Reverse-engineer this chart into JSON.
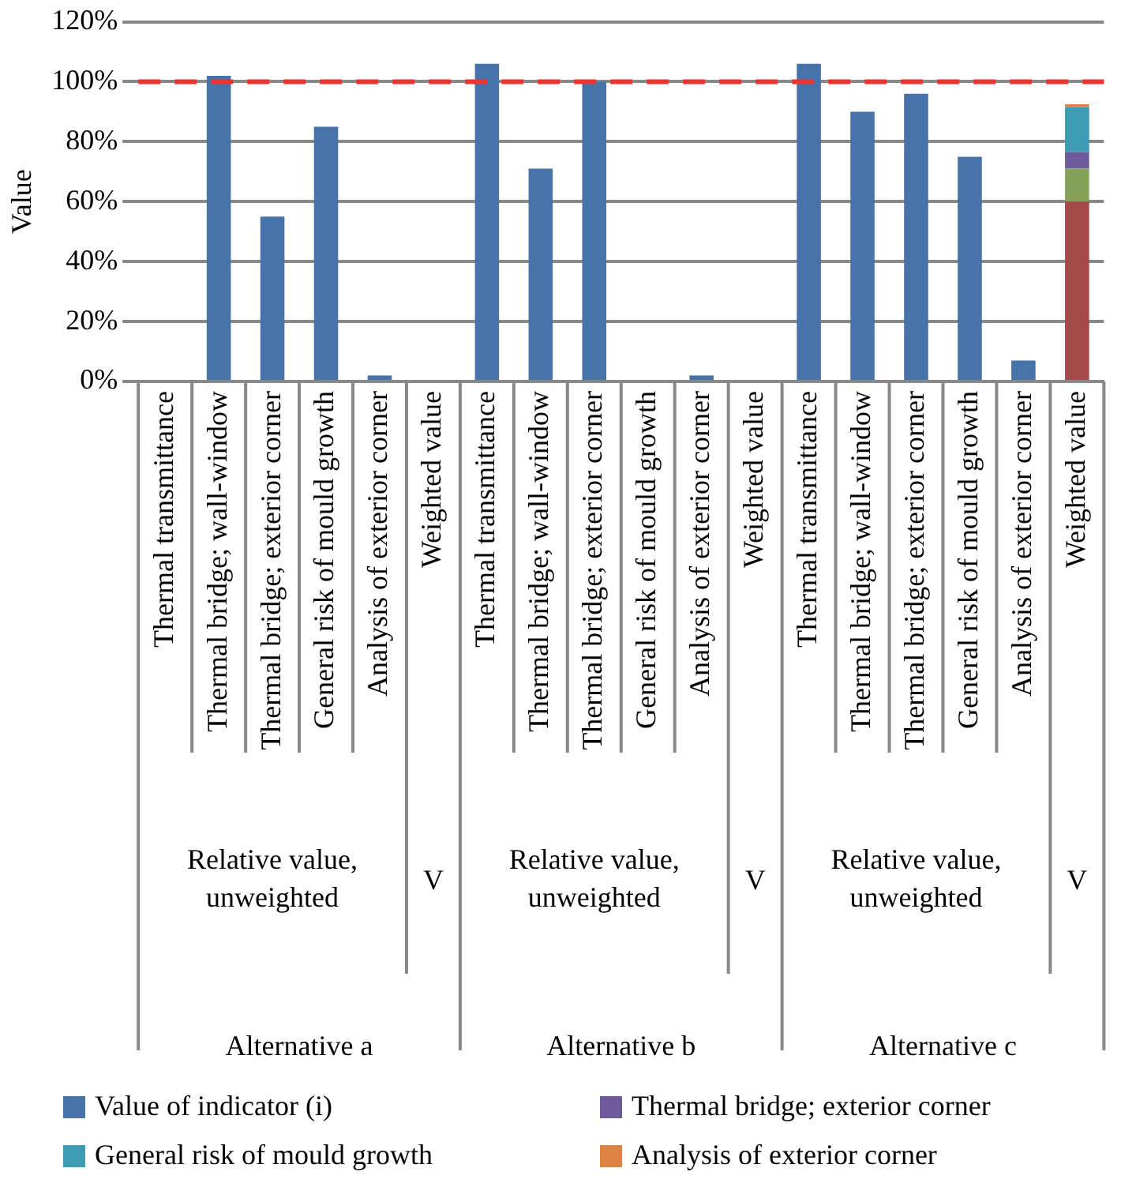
{
  "chart_data": {
    "type": "bar",
    "stacked": true,
    "ylabel": "Value",
    "categories": [
      "Thermal transmittance",
      "Thermal bridge; wall-window",
      "Thermal bridge; exterior corner",
      "General risk of mould growth",
      "Analysis of exterior corner",
      "Weighted value",
      "Thermal transmittance",
      "Thermal bridge; wall-window",
      "Thermal bridge; exterior corner",
      "General risk of mould growth",
      "Analysis of exterior corner",
      "Weighted value",
      "Thermal transmittance",
      "Thermal bridge; wall-window",
      "Thermal bridge; exterior corner",
      "General risk of mould growth",
      "Analysis of exterior corner",
      "Weighted value"
    ],
    "series": [
      {
        "name": "Value of indicator  (i)",
        "color": "#4673aa",
        "values": [
          null,
          102,
          55,
          85,
          2,
          null,
          106,
          71,
          100,
          null,
          2,
          null,
          106,
          90,
          96,
          75,
          7,
          null
        ]
      },
      {
        "color": "#a54a4a",
        "values": [
          null,
          null,
          null,
          null,
          null,
          null,
          null,
          null,
          null,
          null,
          null,
          null,
          null,
          null,
          null,
          null,
          null,
          60
        ]
      },
      {
        "color": "#84a25a",
        "values": [
          null,
          null,
          null,
          null,
          null,
          null,
          null,
          null,
          null,
          null,
          null,
          null,
          null,
          null,
          null,
          null,
          null,
          11
        ]
      },
      {
        "name": "Thermal bridge; exterior corner",
        "color": "#6e5a9a",
        "values": [
          null,
          null,
          null,
          null,
          null,
          null,
          null,
          null,
          null,
          null,
          null,
          null,
          null,
          null,
          null,
          null,
          null,
          5.5
        ]
      },
      {
        "name": "General risk of mould growth",
        "color": "#3d9bb3",
        "values": [
          null,
          null,
          null,
          null,
          null,
          null,
          null,
          null,
          null,
          null,
          null,
          null,
          null,
          null,
          null,
          null,
          null,
          15
        ]
      },
      {
        "name": "Analysis of exterior corner",
        "color": "#dd8444",
        "values": [
          null,
          null,
          null,
          null,
          null,
          null,
          null,
          null,
          null,
          null,
          null,
          null,
          null,
          null,
          null,
          null,
          null,
          1
        ]
      }
    ],
    "ylim": [
      0,
      120
    ],
    "yticks": [
      {
        "value": 0,
        "label": "0%"
      },
      {
        "value": 20,
        "label": "20%"
      },
      {
        "value": 40,
        "label": "40%"
      },
      {
        "value": 60,
        "label": "60%"
      },
      {
        "value": 80,
        "label": "80%"
      },
      {
        "value": 100,
        "label": "100%"
      },
      {
        "value": 120,
        "label": "120%"
      }
    ],
    "grid": "y",
    "ref_lines": [
      {
        "axis": "y",
        "value": 100,
        "color": "#ee3333",
        "line_style": "dashed"
      }
    ],
    "annotations": [
      "Relative value,\nunweighted",
      "V",
      "Alternative a",
      "Relative value,\nunweighted",
      "V",
      "Alternative b",
      "Relative value,\nunweighted",
      "V",
      "Alternative c"
    ],
    "legend": "bottom"
  }
}
